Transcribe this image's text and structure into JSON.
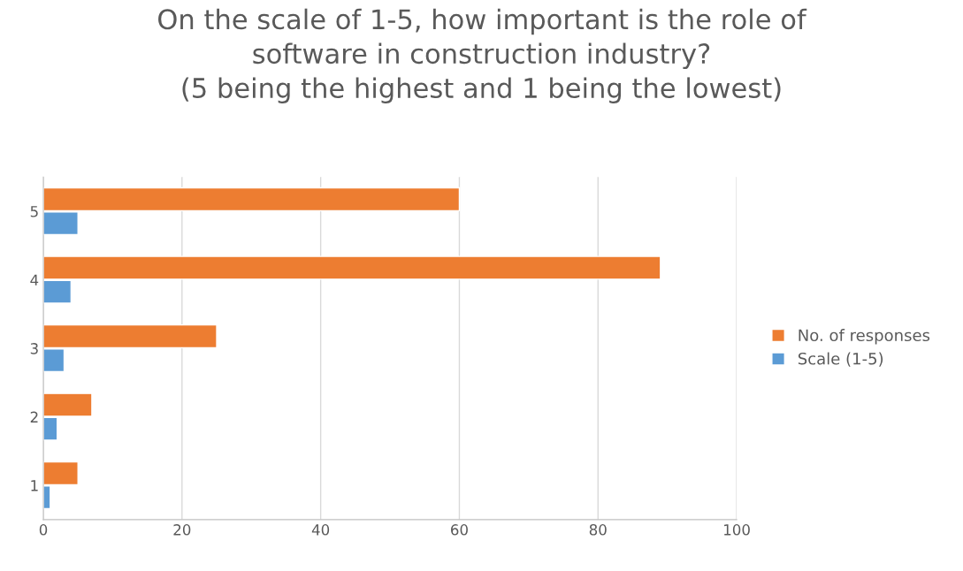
{
  "chart_data": {
    "type": "bar",
    "orientation": "horizontal",
    "title": "On the scale of 1-5, how important is the role of\nsoftware in construction industry?\n(5 being the highest and 1 being the lowest)",
    "categories": [
      "5",
      "4",
      "3",
      "2",
      "1"
    ],
    "series": [
      {
        "name": "No. of responses",
        "color": "#ed7d31",
        "values": [
          60,
          89,
          25,
          7,
          5
        ]
      },
      {
        "name": "Scale (1-5)",
        "color": "#5b9bd5",
        "values": [
          5,
          4,
          3,
          2,
          1
        ]
      }
    ],
    "xlim": [
      0,
      100
    ],
    "xticks": [
      0,
      20,
      40,
      60,
      80,
      100
    ],
    "grid": "x",
    "legend": "right"
  }
}
